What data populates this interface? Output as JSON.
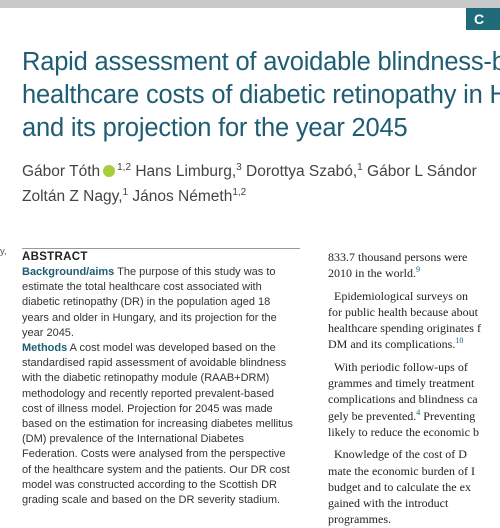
{
  "badge": "C",
  "title_lines": [
    "Rapid assessment of avoidable blindness-ba",
    "healthcare costs of diabetic retinopathy in H",
    "and its projection for the year 2045"
  ],
  "authors": {
    "line1": {
      "a1_name": "Gábor Tóth",
      "a1_sup": "1,2",
      "a2_name": "Hans Limburg,",
      "a2_sup": "3",
      "a3_name": "Dorottya Szabó,",
      "a3_sup": "1",
      "a4_name": "Gábor L Sándor"
    },
    "line2": {
      "a5_name": "Zoltán Z Nagy,",
      "a5_sup": "1",
      "a6_name": "János Németh",
      "a6_sup": "1,2"
    }
  },
  "left_fragment": "y,",
  "abstract": {
    "heading": "ABSTRACT",
    "background_head": "Background/aims",
    "background_text": " The purpose of this study was to estimate the total healthcare cost associated with diabetic retinopathy (DR) in the population aged 18 years and older in Hungary, and its projection for the year 2045.",
    "methods_head": "Methods",
    "methods_text": " A cost model was developed based on the standardised rapid assessment of avoidable blindness with the diabetic retinopathy module (RAAB+DRM) methodology and recently reported prevalent-based cost of illness model. Projection for 2045 was made based on the estimation for increasing diabetes mellitus (DM) prevalence of the International Diabetes Federation. Costs were analysed from the perspective of the healthcare system and the patients. Our DR cost model was constructed according to the Scottish DR grading scale and based on the DR severity stadium."
  },
  "right_column": {
    "p1_l1": "833.7 thousand persons were",
    "p1_l2": "2010 in the world.",
    "p1_ref": "9",
    "p2_l1": "Epidemiological surveys on",
    "p2_l2": "for public health because about",
    "p2_l3": "healthcare spending originates f",
    "p2_l4": "DM and its complications.",
    "p2_ref": "10",
    "p3_l1": "With periodic follow-ups of",
    "p3_l2": "grammes and timely treatment",
    "p3_l3": "complications and blindness ca",
    "p3_l4a": "gely be prevented.",
    "p3_ref": "4",
    "p3_l4b": " Preventing",
    "p3_l5": "likely to reduce the economic b",
    "p4_l1": "Knowledge of the cost of D",
    "p4_l2": "mate the economic burden of I",
    "p4_l3": "budget and to calculate the ex",
    "p4_l4": "gained with the introduct",
    "p4_l5": "programmes."
  }
}
